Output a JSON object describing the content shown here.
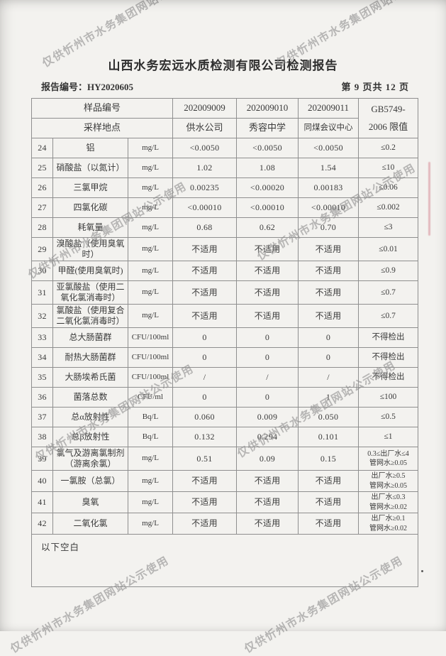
{
  "colors": {
    "ink": "#3b3b3b",
    "border": "#8f8f8f",
    "watermark": "#8e8e8e",
    "paper": "#f3f2ef"
  },
  "watermark": {
    "text": "仅供忻州市水务集团网站公示使用"
  },
  "header": {
    "title": "山西水务宏远水质检测有限公司检测报告",
    "report_no": "报告编号：HY2020605",
    "page_info": "第 9 页共 12 页"
  },
  "table": {
    "head": {
      "row1_label": "样品编号",
      "row2_label": "采样地点",
      "samples": [
        "202009009",
        "202009010",
        "202009011"
      ],
      "locations": [
        "供水公司",
        "秀容中学",
        "同煤会议中心"
      ],
      "limit_line1": "GB5749-",
      "limit_line2": "2006 限值"
    },
    "rows": [
      {
        "no": "24",
        "item": "铝",
        "unit": "mg/L",
        "v1": "<0.0050",
        "v2": "<0.0050",
        "v3": "<0.0050",
        "limit": "≤0.2"
      },
      {
        "no": "25",
        "item": "硝酸盐（以氮计）",
        "unit": "mg/L",
        "v1": "1.02",
        "v2": "1.08",
        "v3": "1.54",
        "limit": "≤10"
      },
      {
        "no": "26",
        "item": "三氯甲烷",
        "unit": "mg/L",
        "v1": "0.00235",
        "v2": "<0.00020",
        "v3": "0.00183",
        "limit": "≤0.06"
      },
      {
        "no": "27",
        "item": "四氯化碳",
        "unit": "mg/L",
        "v1": "<0.00010",
        "v2": "<0.00010",
        "v3": "<0.00010",
        "limit": "≤0.002"
      },
      {
        "no": "28",
        "item": "耗氧量",
        "unit": "mg/L",
        "v1": "0.68",
        "v2": "0.62",
        "v3": "0.70",
        "limit": "≤3"
      },
      {
        "no": "29",
        "item": "溴酸盐（使用臭氧时）",
        "unit": "mg/L",
        "v1": "不适用",
        "v2": "不适用",
        "v3": "不适用",
        "limit": "≤0.01"
      },
      {
        "no": "30",
        "item": "甲醛(使用臭氧时)",
        "unit": "mg/L",
        "v1": "不适用",
        "v2": "不适用",
        "v3": "不适用",
        "limit": "≤0.9"
      },
      {
        "no": "31",
        "item": "亚氯酸盐（使用二氧化氯消毒时）",
        "unit": "mg/L",
        "v1": "不适用",
        "v2": "不适用",
        "v3": "不适用",
        "limit": "≤0.7"
      },
      {
        "no": "32",
        "item": "氯酸盐（使用复合二氧化氯消毒时）",
        "unit": "mg/L",
        "v1": "不适用",
        "v2": "不适用",
        "v3": "不适用",
        "limit": "≤0.7"
      },
      {
        "no": "33",
        "item": "总大肠菌群",
        "unit": "CFU/100ml",
        "v1": "0",
        "v2": "0",
        "v3": "0",
        "limit": "不得检出"
      },
      {
        "no": "34",
        "item": "耐热大肠菌群",
        "unit": "CFU/100ml",
        "v1": "0",
        "v2": "0",
        "v3": "0",
        "limit": "不得检出"
      },
      {
        "no": "35",
        "item": "大肠埃希氏菌",
        "unit": "CFU/100ml",
        "v1": "/",
        "v2": "/",
        "v3": "/",
        "limit": "不得检出"
      },
      {
        "no": "36",
        "item": "菌落总数",
        "unit": "CFU/ml",
        "v1": "0",
        "v2": "0",
        "v3": "1",
        "limit": "≤100"
      },
      {
        "no": "37",
        "item": "总α放射性",
        "unit": "Bq/L",
        "v1": "0.060",
        "v2": "0.009",
        "v3": "0.050",
        "limit": "≤0.5"
      },
      {
        "no": "38",
        "item": "总β放射性",
        "unit": "Bq/L",
        "v1": "0.132",
        "v2": "0.294",
        "v3": "0.101",
        "limit": "≤1"
      },
      {
        "no": "39",
        "item": "氯气及游离氯制剂（游离余氯）",
        "unit": "mg/L",
        "v1": "0.51",
        "v2": "0.09",
        "v3": "0.15",
        "limit": "0.3≤出厂水≤4\n管网水≥0.05",
        "small_limit": true
      },
      {
        "no": "40",
        "item": "一氯胺（总氯）",
        "unit": "mg/L",
        "v1": "不适用",
        "v2": "不适用",
        "v3": "不适用",
        "limit": "出厂水≥0.5\n管网水≥0.05",
        "small_limit": true
      },
      {
        "no": "41",
        "item": "臭氧",
        "unit": "mg/L",
        "v1": "不适用",
        "v2": "不适用",
        "v3": "不适用",
        "limit": "出厂水≤0.3\n管网水≥0.02",
        "small_limit": true
      },
      {
        "no": "42",
        "item": "二氧化氯",
        "unit": "mg/L",
        "v1": "不适用",
        "v2": "不适用",
        "v3": "不适用",
        "limit": "出厂水≥0.1\n管网水≥0.02",
        "small_limit": true
      }
    ]
  },
  "footer": {
    "blank_note": "以下空白"
  }
}
